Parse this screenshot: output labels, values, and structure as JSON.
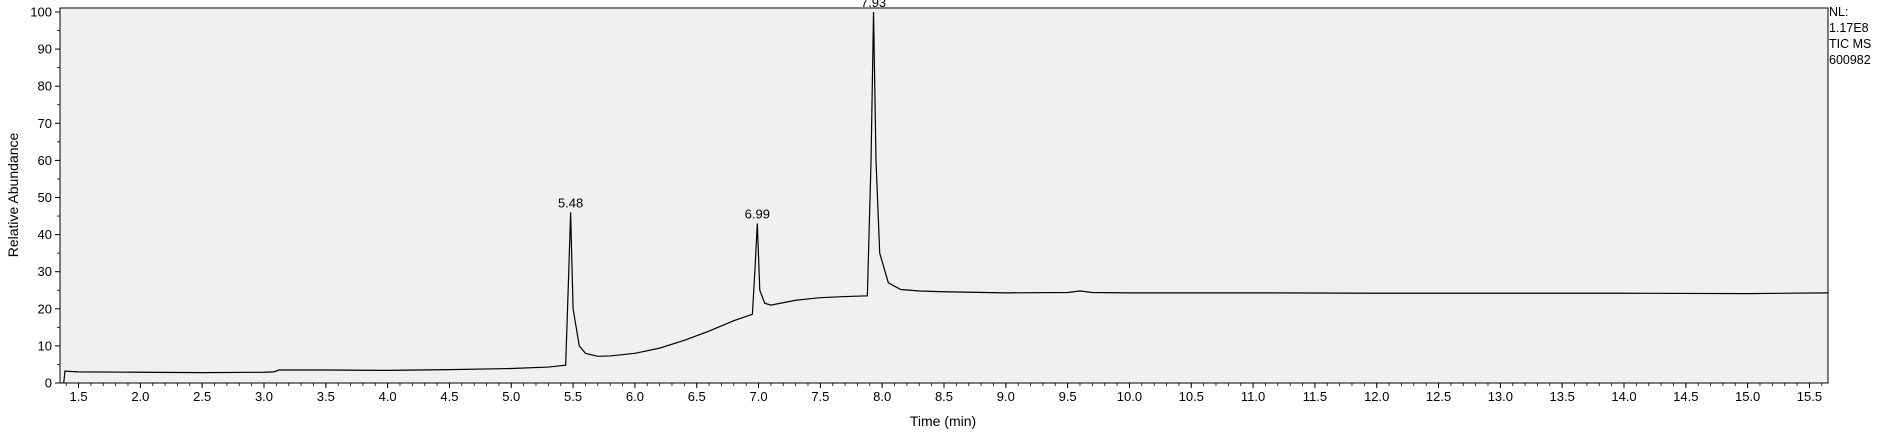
{
  "chart_data": {
    "type": "line",
    "xlabel": "Time (min)",
    "ylabel": "Relative Abundance",
    "xlim": [
      1.35,
      15.65
    ],
    "ylim": [
      0,
      100
    ],
    "x_ticks": [
      "1.5",
      "2.0",
      "2.5",
      "3.0",
      "3.5",
      "4.0",
      "4.5",
      "5.0",
      "5.5",
      "6.0",
      "6.5",
      "7.0",
      "7.5",
      "8.0",
      "8.5",
      "9.0",
      "9.5",
      "10.0",
      "10.5",
      "11.0",
      "11.5",
      "12.0",
      "12.5",
      "13.0",
      "13.5",
      "14.0",
      "14.5",
      "15.0",
      "15.5"
    ],
    "y_ticks": [
      "0",
      "10",
      "20",
      "30",
      "40",
      "50",
      "60",
      "70",
      "80",
      "90",
      "100"
    ],
    "peaks": [
      {
        "label": "5.48",
        "x": 5.48,
        "y": 46
      },
      {
        "label": "6.99",
        "x": 6.99,
        "y": 43
      },
      {
        "label": "7.93",
        "x": 7.93,
        "y": 100
      }
    ],
    "series": [
      {
        "name": "TIC MS",
        "points": [
          [
            1.38,
            0
          ],
          [
            1.39,
            3.2
          ],
          [
            1.5,
            3.0
          ],
          [
            2.0,
            2.9
          ],
          [
            2.5,
            2.8
          ],
          [
            3.0,
            2.9
          ],
          [
            3.08,
            3.0
          ],
          [
            3.12,
            3.5
          ],
          [
            3.5,
            3.5
          ],
          [
            4.0,
            3.4
          ],
          [
            4.5,
            3.6
          ],
          [
            5.0,
            3.9
          ],
          [
            5.3,
            4.3
          ],
          [
            5.44,
            4.8
          ],
          [
            5.465,
            30
          ],
          [
            5.48,
            46
          ],
          [
            5.5,
            20
          ],
          [
            5.55,
            10
          ],
          [
            5.6,
            8
          ],
          [
            5.7,
            7.2
          ],
          [
            5.8,
            7.3
          ],
          [
            6.0,
            8.0
          ],
          [
            6.2,
            9.4
          ],
          [
            6.4,
            11.5
          ],
          [
            6.6,
            14.0
          ],
          [
            6.8,
            16.8
          ],
          [
            6.95,
            18.5
          ],
          [
            6.97,
            30
          ],
          [
            6.99,
            43
          ],
          [
            7.01,
            25
          ],
          [
            7.05,
            21.5
          ],
          [
            7.1,
            21.0
          ],
          [
            7.3,
            22.3
          ],
          [
            7.5,
            23.0
          ],
          [
            7.7,
            23.3
          ],
          [
            7.88,
            23.5
          ],
          [
            7.91,
            60
          ],
          [
            7.93,
            100
          ],
          [
            7.95,
            60
          ],
          [
            7.98,
            35
          ],
          [
            8.05,
            27
          ],
          [
            8.15,
            25.2
          ],
          [
            8.3,
            24.8
          ],
          [
            8.5,
            24.6
          ],
          [
            9.0,
            24.3
          ],
          [
            9.5,
            24.4
          ],
          [
            9.6,
            24.8
          ],
          [
            9.7,
            24.4
          ],
          [
            10.0,
            24.3
          ],
          [
            11.0,
            24.3
          ],
          [
            12.0,
            24.2
          ],
          [
            13.0,
            24.2
          ],
          [
            14.0,
            24.2
          ],
          [
            15.0,
            24.1
          ],
          [
            15.65,
            24.3
          ]
        ]
      }
    ],
    "annotations": [
      "NL:",
      "1.17E8",
      "TIC  MS",
      "600982"
    ]
  }
}
